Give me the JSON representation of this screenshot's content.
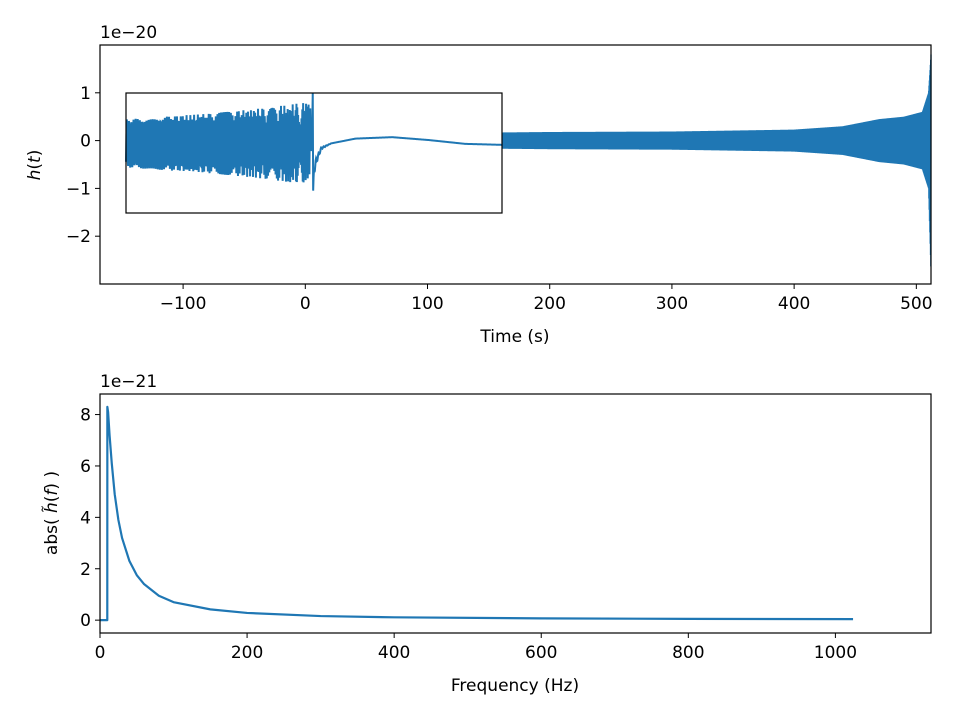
{
  "colors": {
    "line": "#1f77b4",
    "axes": "#000000",
    "background": "#ffffff"
  },
  "chart_data": [
    {
      "type": "line",
      "title": "",
      "xlabel": "Time (s)",
      "ylabel": "h(t)",
      "offset_text": "1e−20",
      "xlim": [
        -168,
        512
      ],
      "ylim": [
        -3.0,
        2.0
      ],
      "xticks": [
        -100,
        0,
        100,
        200,
        300,
        400,
        500
      ],
      "xtick_labels": [
        "−100",
        "0",
        "100",
        "200",
        "300",
        "400",
        "500"
      ],
      "yticks": [
        1,
        0,
        -1,
        -2
      ],
      "ytick_labels": [
        "1",
        "0",
        "−1",
        "−2"
      ],
      "grid": false,
      "series": [
        {
          "description_points": [
            [
              -148,
              0.0
            ],
            [
              -100,
              0.0
            ],
            [
              -50,
              0.0
            ],
            [
              0,
              0.0
            ],
            [
              5,
              0.0
            ],
            [
              100,
              0.0
            ],
            [
              160,
              0.0
            ],
            [
              200,
              0.0
            ],
            [
              300,
              0.0
            ],
            [
              400,
              0.0
            ],
            [
              450,
              0.0
            ],
            [
              500,
              0.0
            ],
            [
              512,
              0.0
            ]
          ],
          "envelope_x": [
            -148,
            160,
            200,
            300,
            400,
            440,
            470,
            490,
            505,
            510,
            512
          ],
          "envelope_upper": [
            0.1,
            0.17,
            0.18,
            0.19,
            0.23,
            0.3,
            0.45,
            0.5,
            0.6,
            1.0,
            1.8
          ],
          "envelope_lower": [
            -0.1,
            -0.17,
            -0.18,
            -0.19,
            -0.23,
            -0.3,
            -0.45,
            -0.5,
            -0.6,
            -1.0,
            -2.75
          ]
        }
      ],
      "inset": {
        "type": "line",
        "xlim": [
          -148,
          160
        ],
        "ylim": [
          -1.5,
          1.0
        ],
        "merger_time": 5,
        "series": [
          {
            "x": [
              -148,
              -120,
              -80,
              -40,
              -10,
              0,
              3,
              5,
              6,
              8,
              12,
              20,
              40,
              70,
              100,
              130,
              160
            ],
            "y_envelope": [
              0.5,
              0.55,
              0.62,
              0.72,
              0.82,
              0.85,
              0.85,
              -1.4,
              -0.6,
              -0.4,
              -0.15,
              -0.05,
              0.05,
              0.08,
              0.02,
              -0.06,
              -0.08
            ]
          }
        ]
      }
    },
    {
      "type": "line",
      "title": "",
      "xlabel": "Frequency (Hz)",
      "ylabel": "abs( h̃(f) )",
      "offset_text": "1e−21",
      "xlim": [
        0,
        1130
      ],
      "ylim": [
        -0.5,
        8.8
      ],
      "xticks": [
        0,
        200,
        400,
        600,
        800,
        1000
      ],
      "xtick_labels": [
        "0",
        "200",
        "400",
        "600",
        "800",
        "1000"
      ],
      "yticks": [
        0,
        2,
        4,
        6,
        8
      ],
      "ytick_labels": [
        "0",
        "2",
        "4",
        "6",
        "8"
      ],
      "grid": false,
      "series": [
        {
          "x": [
            0,
            9.9,
            10,
            11,
            13,
            16,
            20,
            25,
            30,
            40,
            50,
            60,
            80,
            100,
            150,
            200,
            300,
            400,
            600,
            800,
            1024
          ],
          "y": [
            0,
            0,
            8.3,
            8.1,
            7.2,
            6.1,
            4.9,
            3.9,
            3.2,
            2.3,
            1.75,
            1.4,
            0.95,
            0.7,
            0.42,
            0.28,
            0.16,
            0.11,
            0.07,
            0.05,
            0.04
          ]
        }
      ]
    }
  ]
}
